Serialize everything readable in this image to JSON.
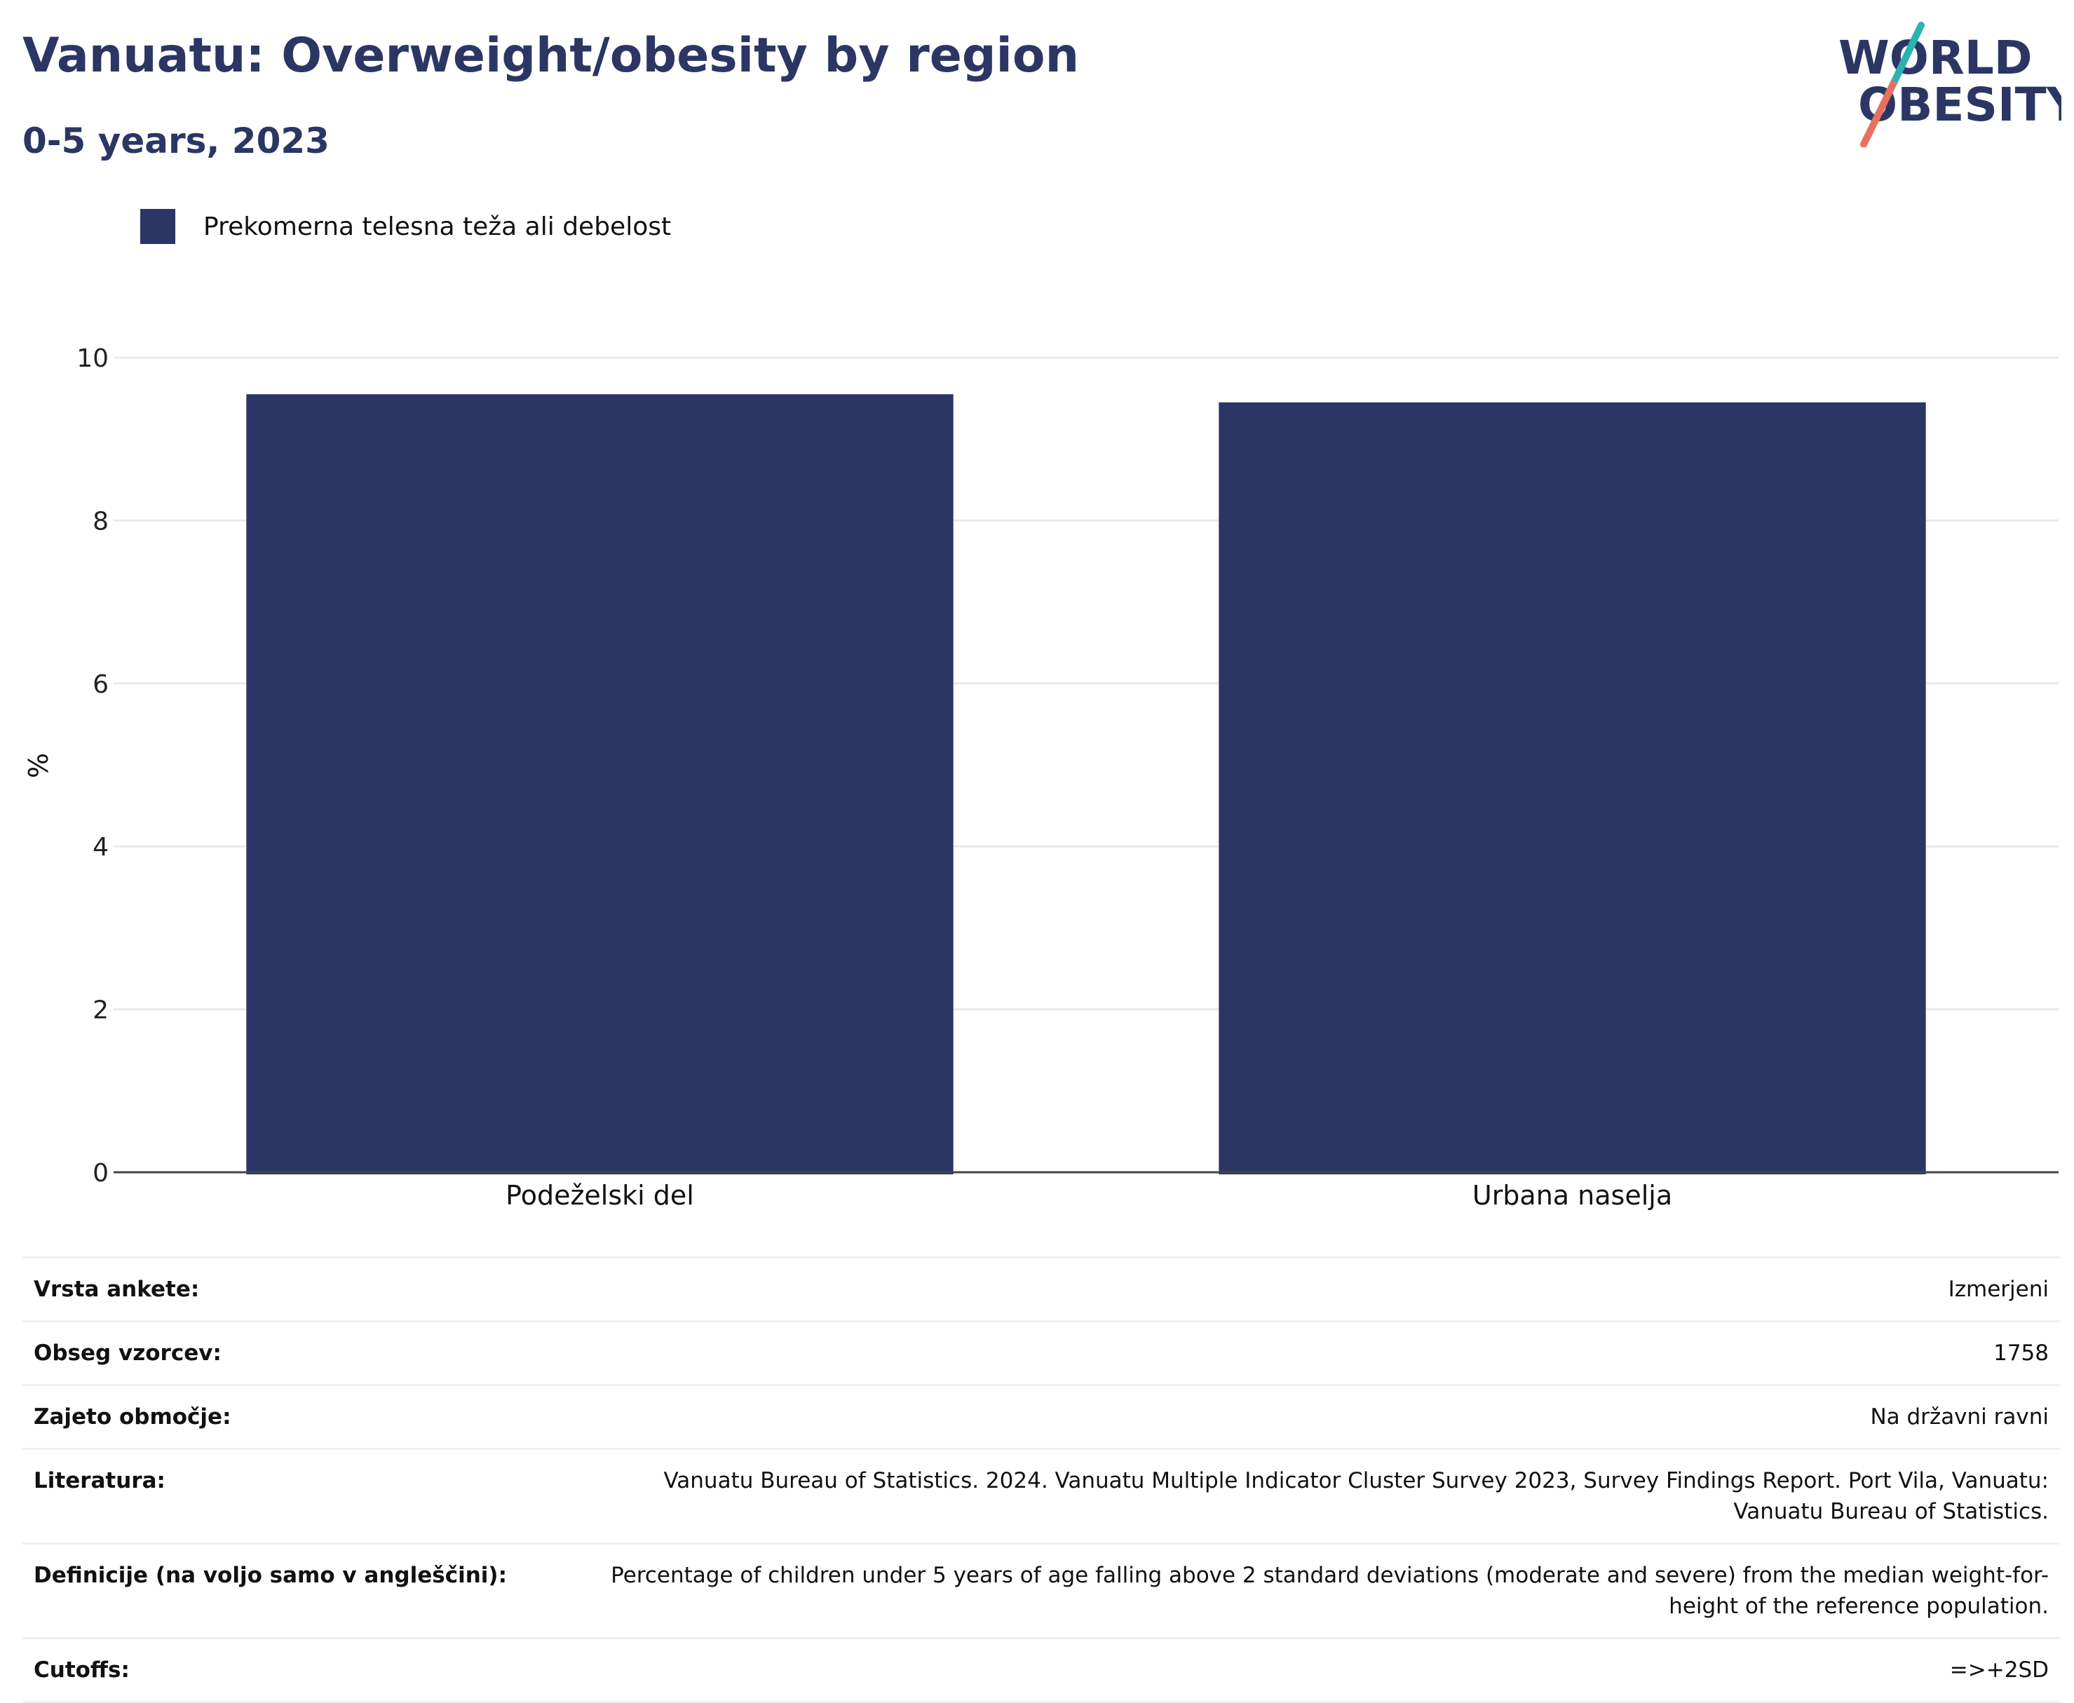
{
  "header": {
    "title": "Vanuatu: Overweight/obesity by region",
    "subtitle": "0-5 years, 2023"
  },
  "logo": {
    "line1": "WORLD",
    "line2": "OBESITY"
  },
  "legend": {
    "label": "Prekomerna telesna teža ali debelost"
  },
  "colors": {
    "bar": "#2b3664",
    "title": "#2b3664",
    "logo_teal": "#2bb3b1",
    "logo_coral": "#e8705e"
  },
  "chart_data": {
    "type": "bar",
    "categories": [
      "Podeželski del",
      "Urbana naselja"
    ],
    "series": [
      {
        "name": "Prekomerna telesna teža ali debelost",
        "values": [
          9.55,
          9.45
        ]
      }
    ],
    "title": "Vanuatu: Overweight/obesity by region",
    "subtitle": "0-5 years, 2023",
    "xlabel": "",
    "ylabel": "%",
    "ylim": [
      0,
      10
    ],
    "yticks": [
      0,
      2,
      4,
      6,
      8,
      10
    ],
    "grid": true,
    "legend_position": "top-left"
  },
  "info": {
    "rows": [
      {
        "key": "Vrsta ankete:",
        "value": "Izmerjeni"
      },
      {
        "key": "Obseg vzorcev:",
        "value": "1758"
      },
      {
        "key": "Zajeto območje:",
        "value": "Na državni ravni"
      },
      {
        "key": "Literatura:",
        "value": "Vanuatu Bureau of Statistics. 2024. Vanuatu Multiple Indicator Cluster Survey 2023, Survey Findings Report. Port Vila, Vanuatu: Vanuatu Bureau of Statistics."
      },
      {
        "key": "Definicije (na voljo samo v angleščini):",
        "value": "Percentage of children under 5 years of age falling above 2 standard deviations (moderate and severe) from the median weight-for-height of the reference population."
      },
      {
        "key": "Cutoffs:",
        "value": "=>+2SD"
      }
    ]
  }
}
